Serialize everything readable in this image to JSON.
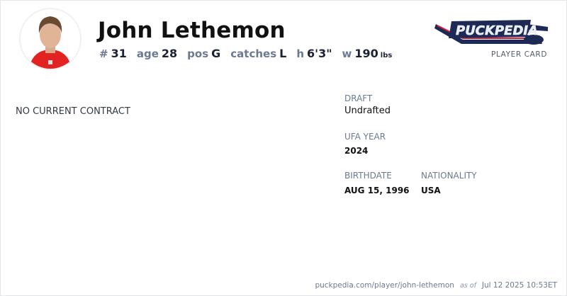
{
  "player": {
    "name": "John Lethemon",
    "stats": [
      {
        "label": "#",
        "value": "31"
      },
      {
        "label": "age",
        "value": "28"
      },
      {
        "label": "pos",
        "value": "G"
      },
      {
        "label": "catches",
        "value": "L"
      },
      {
        "label": "h",
        "value": "6'3\""
      },
      {
        "label": "w",
        "value": "190",
        "unit": "lbs"
      }
    ]
  },
  "brand": {
    "logo_text": "PuckPedia",
    "subtitle": "PLAYER CARD",
    "colors": {
      "navy": "#1c2a55",
      "red": "#d6213a"
    }
  },
  "contract": {
    "status": "NO CURRENT CONTRACT"
  },
  "details": {
    "draft_label": "DRAFT",
    "draft_value": "Undrafted",
    "ufa_label": "UFA YEAR",
    "ufa_value": "2024",
    "birthdate_label": "BIRTHDATE",
    "birthdate_value": "AUG 15, 1996",
    "nationality_label": "NATIONALITY",
    "nationality_value": "USA"
  },
  "footer": {
    "url": "puckpedia.com/player/john-lethemon",
    "as_of": "as of",
    "timestamp": "Jul 12 2025 10:53ET"
  }
}
